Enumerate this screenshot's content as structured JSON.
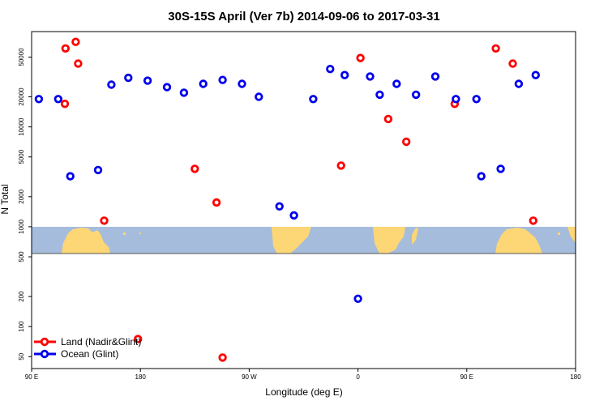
{
  "chart_data": {
    "type": "scatter",
    "title": "30S-15S April (Ver 7b)   2014-09-06 to 2017-03-31",
    "xlabel": "Longitude (deg E)",
    "ylabel": "N Total",
    "x_range": [
      90,
      540
    ],
    "x_ticks": [
      {
        "value": 90,
        "label": "90 E"
      },
      {
        "value": 180,
        "label": "180"
      },
      {
        "value": 270,
        "label": "90 W"
      },
      {
        "value": 360,
        "label": "0"
      },
      {
        "value": 450,
        "label": "90 E"
      },
      {
        "value": 540,
        "label": "180"
      }
    ],
    "y_scale": "log",
    "ylim": [
      38,
      90000
    ],
    "y_ticks": [
      50,
      100,
      200,
      500,
      1000,
      2000,
      5000,
      10000,
      20000,
      50000
    ],
    "map_band": {
      "y_from": 500,
      "y_to": 950,
      "ocean_color": "#a6bcdc",
      "land_color": "#fdd775"
    },
    "series": [
      {
        "name": "Land (Nadir&Glint)",
        "color": "#ff0000",
        "points": [
          [
            118,
            61000
          ],
          [
            117.5,
            17000
          ],
          [
            128.5,
            43000
          ],
          [
            126.5,
            71000
          ],
          [
            150,
            1150
          ],
          [
            178,
            75
          ],
          [
            225,
            3800
          ],
          [
            243,
            1750
          ],
          [
            248,
            49
          ],
          [
            346,
            4100
          ],
          [
            362,
            49000
          ],
          [
            385,
            12000
          ],
          [
            400,
            7100
          ],
          [
            440,
            17000
          ],
          [
            474,
            61000
          ],
          [
            488,
            43000
          ],
          [
            505,
            1150
          ]
        ]
      },
      {
        "name": "Ocean (Glint)",
        "color": "#0000ee",
        "points": [
          [
            96,
            19000
          ],
          [
            112,
            19000
          ],
          [
            122,
            3200
          ],
          [
            145,
            3700
          ],
          [
            156,
            26500
          ],
          [
            170,
            31000
          ],
          [
            186,
            29000
          ],
          [
            202,
            25000
          ],
          [
            216,
            22000
          ],
          [
            232,
            27000
          ],
          [
            248,
            29500
          ],
          [
            264,
            27000
          ],
          [
            278,
            20000
          ],
          [
            295,
            1600
          ],
          [
            307,
            1300
          ],
          [
            323,
            19000
          ],
          [
            337,
            38000
          ],
          [
            360,
            190
          ],
          [
            349,
            33000
          ],
          [
            370,
            32000
          ],
          [
            378,
            21000
          ],
          [
            392,
            27000
          ],
          [
            408,
            21000
          ],
          [
            424,
            32000
          ],
          [
            441,
            19000
          ],
          [
            458,
            19000
          ],
          [
            462,
            3200
          ],
          [
            478,
            3800
          ],
          [
            493,
            27000
          ],
          [
            507,
            33000
          ]
        ]
      }
    ],
    "legend": {
      "position": "bottom-left"
    }
  }
}
